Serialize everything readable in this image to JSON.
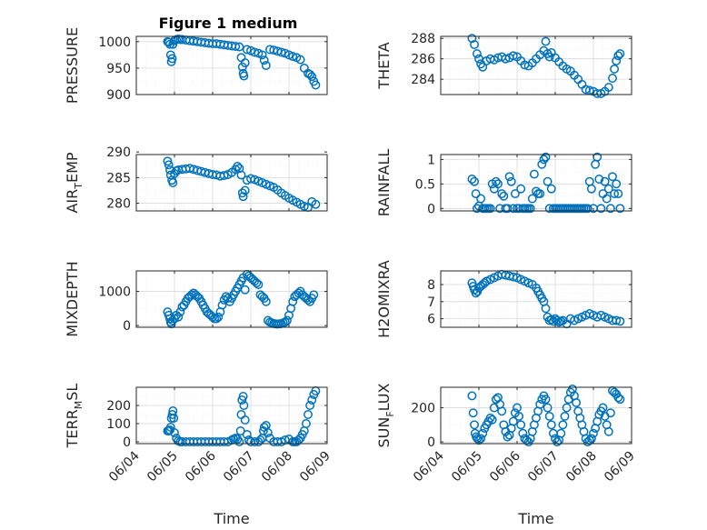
{
  "marker_color": "#0072BD",
  "title": "Figure 1 medium",
  "xlabel": "Time",
  "time_ticks": [
    "06/04",
    "06/05",
    "06/06",
    "06/07",
    "06/08",
    "06/09"
  ],
  "time_range_days": [
    4,
    9
  ],
  "chart_data": [
    {
      "type": "scatter",
      "ylabel": "PRESSURE",
      "ylim": [
        900,
        1010
      ],
      "yticks": [
        900,
        950,
        1000
      ],
      "grid": true,
      "x": [
        4.82,
        4.85,
        4.88,
        4.9,
        4.92,
        4.94,
        4.96,
        5.0,
        5.05,
        5.1,
        5.15,
        5.2,
        5.3,
        5.4,
        5.5,
        5.6,
        5.7,
        5.8,
        5.9,
        6.0,
        6.1,
        6.2,
        6.3,
        6.4,
        6.5,
        6.6,
        6.7,
        6.75,
        6.78,
        6.8,
        6.82,
        6.85,
        6.9,
        7.0,
        7.1,
        7.2,
        7.3,
        7.35,
        7.4,
        7.5,
        7.6,
        7.7,
        7.8,
        7.9,
        8.0,
        8.1,
        8.2,
        8.3,
        8.4,
        8.5,
        8.55,
        8.6,
        8.65,
        8.7
      ],
      "y": [
        1000,
        999,
        995,
        975,
        962,
        968,
        995,
        1002,
        1004,
        1005,
        1004,
        1004,
        1003,
        1002,
        1001,
        1000,
        999,
        998,
        997,
        996,
        996,
        995,
        994,
        993,
        992,
        991,
        990,
        970,
        952,
        940,
        935,
        960,
        985,
        983,
        980,
        978,
        975,
        965,
        955,
        985,
        984,
        982,
        980,
        978,
        975,
        972,
        970,
        966,
        950,
        940,
        938,
        934,
        925,
        918
      ]
    },
    {
      "type": "scatter",
      "ylabel": "THETA",
      "ylim": [
        282.5,
        288.2
      ],
      "yticks": [
        284,
        286,
        288
      ],
      "grid": true,
      "x": [
        4.82,
        4.88,
        4.95,
        5.0,
        5.05,
        5.1,
        5.2,
        5.3,
        5.4,
        5.5,
        5.6,
        5.7,
        5.8,
        5.9,
        6.0,
        6.1,
        6.2,
        6.3,
        6.4,
        6.5,
        6.6,
        6.7,
        6.75,
        6.8,
        6.85,
        6.9,
        7.0,
        7.1,
        7.2,
        7.3,
        7.4,
        7.5,
        7.6,
        7.7,
        7.8,
        7.9,
        8.0,
        8.1,
        8.2,
        8.3,
        8.4,
        8.5,
        8.55,
        8.6,
        8.65,
        8.7
      ],
      "y": [
        288,
        287.4,
        286.5,
        286,
        285.5,
        285.2,
        285.8,
        286,
        285.9,
        286.1,
        286.2,
        286,
        286.1,
        286.3,
        286.2,
        285.8,
        285.4,
        285.3,
        285.6,
        286,
        286.4,
        286.8,
        287.7,
        286.5,
        286.2,
        286.6,
        286.1,
        285.7,
        285.3,
        285,
        284.8,
        284.4,
        284,
        283.5,
        283,
        282.9,
        282.8,
        282.6,
        282.6,
        282.8,
        283.2,
        284.1,
        285,
        285.8,
        286.3,
        286.5
      ]
    },
    {
      "type": "scatter",
      "ylabel": "AIR_TEMP",
      "ylim": [
        278.5,
        289.5
      ],
      "yticks": [
        280,
        285,
        290
      ],
      "grid": true,
      "x": [
        4.82,
        4.85,
        4.88,
        4.9,
        4.93,
        4.96,
        5.0,
        5.05,
        5.1,
        5.2,
        5.3,
        5.4,
        5.5,
        5.6,
        5.7,
        5.8,
        5.9,
        6.0,
        6.1,
        6.2,
        6.3,
        6.4,
        6.5,
        6.6,
        6.65,
        6.7,
        6.75,
        6.78,
        6.8,
        6.85,
        6.9,
        7.0,
        7.1,
        7.2,
        7.3,
        7.4,
        7.5,
        7.6,
        7.7,
        7.8,
        7.9,
        8.0,
        8.1,
        8.2,
        8.3,
        8.4,
        8.5,
        8.6,
        8.7
      ],
      "y": [
        288.2,
        287.5,
        286.5,
        285.5,
        284.5,
        284,
        285.8,
        286.3,
        286.5,
        286.6,
        286.7,
        286.8,
        286.6,
        286.4,
        286.2,
        286,
        285.8,
        285.6,
        285.5,
        285.3,
        285.4,
        285.6,
        286,
        286.6,
        287.2,
        286.8,
        285.5,
        282,
        281.3,
        282.5,
        284.5,
        284.8,
        284.6,
        284.3,
        284,
        283.7,
        283.4,
        283.1,
        282.6,
        282,
        281.5,
        281,
        280.6,
        280.2,
        279.8,
        279.4,
        279.2,
        280.3,
        279.8
      ]
    },
    {
      "type": "scatter",
      "ylabel": "RAINFALL",
      "ylim": [
        -0.05,
        1.1
      ],
      "yticks": [
        0,
        0.5,
        1
      ],
      "grid": true,
      "x": [
        4.82,
        4.88,
        4.92,
        4.95,
        5.0,
        5.05,
        5.1,
        5.15,
        5.2,
        5.25,
        5.3,
        5.35,
        5.4,
        5.45,
        5.5,
        5.55,
        5.6,
        5.65,
        5.7,
        5.75,
        5.8,
        5.85,
        5.9,
        5.95,
        6.0,
        6.05,
        6.1,
        6.15,
        6.2,
        6.25,
        6.3,
        6.35,
        6.4,
        6.45,
        6.5,
        6.55,
        6.6,
        6.65,
        6.7,
        6.75,
        6.8,
        6.85,
        6.9,
        6.95,
        7.0,
        7.05,
        7.1,
        7.15,
        7.2,
        7.25,
        7.3,
        7.35,
        7.4,
        7.45,
        7.5,
        7.55,
        7.6,
        7.65,
        7.7,
        7.75,
        7.8,
        7.85,
        7.9,
        7.95,
        8.0,
        8.05,
        8.1,
        8.15,
        8.2,
        8.25,
        8.3,
        8.35,
        8.4,
        8.45,
        8.5,
        8.55,
        8.6,
        8.65,
        8.7
      ],
      "y": [
        0.6,
        0.55,
        0.3,
        0.0,
        0.05,
        0.2,
        0.0,
        0.0,
        0.0,
        0.0,
        0.0,
        0.5,
        0.4,
        0.55,
        0.5,
        0.0,
        0.3,
        0.25,
        0.0,
        0.0,
        0.65,
        0.55,
        0.0,
        0.3,
        0.0,
        0.0,
        0.4,
        0.0,
        0.0,
        0.0,
        0.0,
        0.0,
        0.2,
        0.7,
        0.35,
        0.3,
        0.3,
        0.9,
        1.0,
        1.05,
        0.55,
        0.0,
        0.4,
        0.0,
        0.0,
        0.0,
        0.0,
        0.0,
        0.0,
        0.0,
        0.0,
        0.0,
        0.0,
        0.0,
        0.0,
        0.0,
        0.0,
        0.0,
        0.0,
        0.0,
        0.0,
        0.0,
        0.55,
        0.4,
        0.0,
        0.9,
        1.05,
        0.6,
        0.0,
        0.3,
        0.55,
        0.2,
        0.4,
        0.0,
        0.65,
        0.3,
        0.5,
        0.3,
        0.0
      ]
    },
    {
      "type": "scatter",
      "ylabel": "MIXDEPTH",
      "ylim": [
        -50,
        1600
      ],
      "yticks": [
        0,
        1000
      ],
      "grid": true,
      "x": [
        4.82,
        4.85,
        4.88,
        4.9,
        4.92,
        4.95,
        5.0,
        5.05,
        5.1,
        5.15,
        5.2,
        5.25,
        5.3,
        5.35,
        5.4,
        5.45,
        5.5,
        5.55,
        5.6,
        5.65,
        5.7,
        5.75,
        5.8,
        5.85,
        5.9,
        5.95,
        6.0,
        6.05,
        6.1,
        6.15,
        6.2,
        6.25,
        6.3,
        6.35,
        6.4,
        6.45,
        6.5,
        6.55,
        6.6,
        6.65,
        6.7,
        6.75,
        6.8,
        6.85,
        6.9,
        6.95,
        7.0,
        7.05,
        7.1,
        7.15,
        7.2,
        7.25,
        7.3,
        7.35,
        7.4,
        7.45,
        7.5,
        7.55,
        7.6,
        7.65,
        7.7,
        7.75,
        7.8,
        7.85,
        7.9,
        7.95,
        8.0,
        8.05,
        8.1,
        8.15,
        8.2,
        8.25,
        8.3,
        8.35,
        8.4,
        8.45,
        8.5,
        8.55,
        8.6,
        8.65
      ],
      "y": [
        400,
        300,
        200,
        100,
        50,
        150,
        200,
        300,
        250,
        400,
        550,
        600,
        700,
        800,
        850,
        900,
        950,
        900,
        850,
        800,
        700,
        600,
        500,
        400,
        350,
        300,
        250,
        200,
        200,
        250,
        400,
        600,
        750,
        850,
        800,
        700,
        800,
        900,
        1000,
        1100,
        1200,
        1300,
        1400,
        1050,
        1500,
        1450,
        1400,
        1350,
        1300,
        1250,
        1200,
        900,
        850,
        800,
        700,
        150,
        100,
        80,
        60,
        50,
        40,
        50,
        60,
        80,
        100,
        150,
        300,
        500,
        700,
        850,
        900,
        950,
        1000,
        900,
        850,
        800,
        750,
        700,
        800,
        900
      ]
    },
    {
      "type": "scatter",
      "ylabel": "H2OMIXRA",
      "ylim": [
        5.5,
        8.8
      ],
      "yticks": [
        6,
        7,
        8
      ],
      "grid": true,
      "x": [
        4.82,
        4.85,
        4.88,
        4.92,
        4.96,
        5.0,
        5.05,
        5.1,
        5.15,
        5.2,
        5.3,
        5.4,
        5.5,
        5.6,
        5.7,
        5.8,
        5.9,
        6.0,
        6.1,
        6.2,
        6.3,
        6.4,
        6.5,
        6.55,
        6.6,
        6.65,
        6.7,
        6.75,
        6.8,
        6.85,
        6.9,
        6.95,
        7.0,
        7.05,
        7.1,
        7.15,
        7.2,
        7.3,
        7.4,
        7.5,
        7.6,
        7.7,
        7.8,
        7.9,
        8.0,
        8.1,
        8.2,
        8.3,
        8.4,
        8.5,
        8.6,
        8.7
      ],
      "y": [
        8.1,
        7.9,
        7.7,
        7.5,
        7.6,
        7.8,
        7.9,
        8.0,
        8.1,
        8.2,
        8.3,
        8.4,
        8.5,
        8.6,
        8.55,
        8.5,
        8.45,
        8.4,
        8.3,
        8.2,
        8.1,
        8.0,
        7.8,
        7.6,
        7.4,
        7.2,
        7.0,
        6.6,
        6.1,
        5.9,
        5.95,
        5.85,
        6.0,
        5.9,
        5.8,
        5.85,
        5.9,
        5.7,
        6.0,
        5.9,
        6.0,
        6.1,
        6.2,
        6.3,
        6.2,
        6.1,
        6.2,
        6.1,
        6.0,
        5.9,
        5.9,
        5.85
      ]
    },
    {
      "type": "scatter",
      "ylabel": "TERR_MSL",
      "ylim": [
        -10,
        300
      ],
      "yticks": [
        0,
        100,
        200
      ],
      "grid": true,
      "x": [
        4.82,
        4.85,
        4.88,
        4.9,
        4.92,
        4.94,
        4.96,
        4.98,
        5.0,
        5.05,
        5.1,
        5.15,
        5.2,
        5.3,
        5.4,
        5.5,
        5.6,
        5.7,
        5.8,
        5.9,
        6.0,
        6.1,
        6.2,
        6.3,
        6.4,
        6.5,
        6.55,
        6.6,
        6.65,
        6.7,
        6.73,
        6.75,
        6.77,
        6.8,
        6.82,
        6.85,
        6.9,
        6.95,
        7.0,
        7.1,
        7.2,
        7.25,
        7.3,
        7.33,
        7.35,
        7.4,
        7.45,
        7.5,
        7.6,
        7.7,
        7.8,
        7.9,
        8.0,
        8.1,
        8.15,
        8.2,
        8.25,
        8.3,
        8.35,
        8.4,
        8.45,
        8.5,
        8.55,
        8.6,
        8.65,
        8.7
      ],
      "y": [
        60,
        60,
        65,
        80,
        130,
        150,
        170,
        130,
        50,
        20,
        5,
        0,
        0,
        0,
        0,
        0,
        0,
        0,
        0,
        0,
        0,
        0,
        0,
        0,
        0,
        10,
        15,
        20,
        15,
        0,
        60,
        150,
        230,
        250,
        200,
        120,
        40,
        10,
        0,
        0,
        0,
        10,
        20,
        60,
        80,
        90,
        50,
        20,
        0,
        0,
        0,
        10,
        15,
        0,
        0,
        0,
        10,
        20,
        40,
        60,
        100,
        150,
        200,
        230,
        260,
        280
      ]
    },
    {
      "type": "scatter",
      "ylabel": "SUN_FLUX",
      "ylim": [
        -10,
        320
      ],
      "yticks": [
        0,
        200
      ],
      "grid": true,
      "x": [
        4.82,
        4.85,
        4.88,
        4.9,
        4.93,
        4.96,
        5.0,
        5.05,
        5.1,
        5.15,
        5.2,
        5.25,
        5.3,
        5.35,
        5.4,
        5.45,
        5.5,
        5.55,
        5.6,
        5.65,
        5.7,
        5.75,
        5.8,
        5.85,
        5.9,
        5.95,
        6.0,
        6.05,
        6.1,
        6.15,
        6.2,
        6.25,
        6.3,
        6.35,
        6.4,
        6.45,
        6.5,
        6.55,
        6.6,
        6.65,
        6.7,
        6.75,
        6.8,
        6.85,
        6.9,
        6.95,
        7.0,
        7.05,
        7.1,
        7.15,
        7.2,
        7.25,
        7.3,
        7.35,
        7.4,
        7.45,
        7.5,
        7.55,
        7.6,
        7.65,
        7.7,
        7.75,
        7.8,
        7.85,
        7.9,
        7.95,
        8.0,
        8.05,
        8.1,
        8.15,
        8.2,
        8.25,
        8.3,
        8.35,
        8.4,
        8.45,
        8.5,
        8.55,
        8.6,
        8.65,
        8.7
      ],
      "y": [
        270,
        170,
        100,
        50,
        30,
        20,
        10,
        20,
        50,
        80,
        100,
        120,
        140,
        130,
        200,
        250,
        260,
        220,
        180,
        100,
        60,
        30,
        40,
        80,
        120,
        170,
        200,
        150,
        100,
        50,
        20,
        10,
        0,
        20,
        60,
        100,
        140,
        180,
        220,
        250,
        270,
        250,
        200,
        150,
        100,
        50,
        20,
        0,
        10,
        50,
        100,
        150,
        200,
        250,
        290,
        310,
        270,
        230,
        180,
        140,
        100,
        60,
        20,
        0,
        10,
        20,
        50,
        80,
        120,
        160,
        180,
        200,
        150,
        100,
        60,
        170,
        300,
        290,
        280,
        260,
        250
      ]
    }
  ]
}
